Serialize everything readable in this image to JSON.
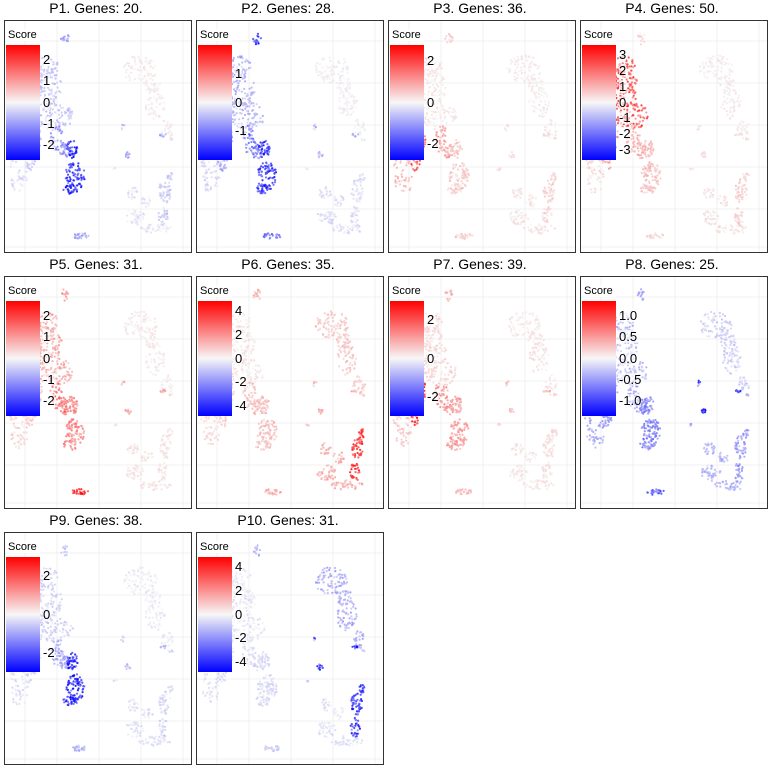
{
  "colors": {
    "high": "#ff0000",
    "mid": "#f5f5f5",
    "low": "#0000ff",
    "neutral_points": "#dcdcdc",
    "grid": "#e6e6e6",
    "border": "#333333"
  },
  "chart_data": [
    {
      "type": "scatter",
      "title": "P1. Genes: 20.",
      "legend_title": "Score",
      "ticks": [
        "2",
        "1",
        "0",
        "-1",
        "-2"
      ],
      "tick_values": [
        2,
        1,
        0,
        -1,
        -2
      ],
      "range": [
        -2.7,
        2.7
      ],
      "clusters": {
        "top_spot": -1,
        "left_strand": -0.3,
        "main_blob": -0.6,
        "right_blob": 0.1,
        "mid_spot": -1,
        "lower_left_arm": -0.6,
        "middle_lobe": -1.2,
        "right_lobe": -2.4,
        "bottom_ring": -0.2,
        "bottom_right_arm": -0.5,
        "bottom_spot": -1,
        "small_spots": -0.3
      }
    },
    {
      "type": "scatter",
      "title": "P2. Genes: 28.",
      "legend_title": "Score",
      "ticks": [
        "1",
        "0",
        "-1"
      ],
      "tick_values": [
        1,
        0,
        -1
      ],
      "range": [
        -2,
        2
      ],
      "clusters": {
        "top_spot": -1.9,
        "left_strand": -0.3,
        "main_blob": -0.6,
        "right_blob": 0,
        "mid_spot": -0.6,
        "lower_left_arm": -0.7,
        "middle_lobe": -1.1,
        "right_lobe": -1.7,
        "bottom_ring": -0.2,
        "bottom_right_arm": -0.2,
        "bottom_spot": -1.2,
        "small_spots": -0.2
      }
    },
    {
      "type": "scatter",
      "title": "P3. Genes: 36.",
      "legend_title": "Score",
      "ticks": [
        "2",
        "0",
        "-2"
      ],
      "tick_values": [
        2,
        0,
        -2
      ],
      "range": [
        -2.8,
        2.8
      ],
      "clusters": {
        "top_spot": 0.6,
        "left_strand": 0.8,
        "main_blob": 0.2,
        "right_blob": 0.1,
        "mid_spot": 0.4,
        "lower_left_arm": 2.3,
        "middle_lobe": 1.0,
        "right_lobe": 0.5,
        "bottom_ring": 0.2,
        "bottom_right_arm": 0.4,
        "bottom_spot": 0.5,
        "small_spots": 0.3
      }
    },
    {
      "type": "scatter",
      "title": "P4. Genes: 50.",
      "legend_title": "Score",
      "ticks": [
        "3",
        "2",
        "1",
        "0",
        "-1",
        "-2",
        "-3"
      ],
      "tick_values": [
        3,
        2,
        1,
        0,
        -1,
        -2,
        -3
      ],
      "range": [
        -3.6,
        3.6
      ],
      "clusters": {
        "top_spot": 0.6,
        "left_strand": 0.4,
        "main_blob": 2.8,
        "right_blob": 0.1,
        "mid_spot": 0.4,
        "lower_left_arm": 1.4,
        "middle_lobe": 1.2,
        "right_lobe": 0.9,
        "bottom_ring": 0.3,
        "bottom_right_arm": 0.6,
        "bottom_spot": 0.5,
        "small_spots": 0.4
      }
    },
    {
      "type": "scatter",
      "title": "P5. Genes: 31.",
      "legend_title": "Score",
      "ticks": [
        "2",
        "1",
        "0",
        "-1",
        "-2"
      ],
      "tick_values": [
        2,
        1,
        0,
        -1,
        -2
      ],
      "range": [
        -2.7,
        2.7
      ],
      "clusters": {
        "top_spot": 1.2,
        "left_strand": 0.4,
        "main_blob": 0.9,
        "right_blob": 0.1,
        "mid_spot": 1.0,
        "lower_left_arm": 0.6,
        "middle_lobe": 1.6,
        "right_lobe": 1.3,
        "bottom_ring": 0.2,
        "bottom_right_arm": 0.2,
        "bottom_spot": 2.6,
        "small_spots": 0.4
      }
    },
    {
      "type": "scatter",
      "title": "P6. Genes: 35.",
      "legend_title": "Score",
      "ticks": [
        "4",
        "2",
        "0",
        "-2",
        "-4"
      ],
      "tick_values": [
        4,
        2,
        0,
        -2,
        -4
      ],
      "range": [
        -4.8,
        4.8
      ],
      "clusters": {
        "top_spot": 1.5,
        "left_strand": 0.6,
        "main_blob": 0.3,
        "right_blob": 1.0,
        "mid_spot": 1.5,
        "lower_left_arm": 0.9,
        "middle_lobe": 1.2,
        "right_lobe": 1.1,
        "bottom_ring": 1.6,
        "bottom_right_arm": 4.2,
        "bottom_spot": 1.5,
        "small_spots": 1.0
      }
    },
    {
      "type": "scatter",
      "title": "P7. Genes: 39.",
      "legend_title": "Score",
      "ticks": [
        "2",
        "0",
        "-2"
      ],
      "tick_values": [
        2,
        0,
        -2
      ],
      "range": [
        -3,
        3
      ],
      "clusters": {
        "top_spot": 0.9,
        "left_strand": 0.6,
        "main_blob": 0.4,
        "right_blob": 0.2,
        "mid_spot": 0.9,
        "lower_left_arm": 2.6,
        "middle_lobe": 1.4,
        "right_lobe": 1.2,
        "bottom_ring": 0.2,
        "bottom_right_arm": 0.3,
        "bottom_spot": 0.9,
        "small_spots": 0.5
      }
    },
    {
      "type": "scatter",
      "title": "P8. Genes: 25.",
      "legend_title": "Score",
      "ticks": [
        "1.0",
        "0.5",
        "0.0",
        "-0.5",
        "-1.0"
      ],
      "tick_values": [
        1.0,
        0.5,
        0.0,
        -0.5,
        -1.0
      ],
      "range": [
        -1.35,
        1.35
      ],
      "clusters": {
        "top_spot": -0.6,
        "left_strand": -0.5,
        "main_blob": -0.35,
        "right_blob": -0.25,
        "mid_spot": -1.3,
        "lower_left_arm": -0.6,
        "middle_lobe": -0.6,
        "right_lobe": -0.7,
        "bottom_ring": -0.4,
        "bottom_right_arm": -0.6,
        "bottom_spot": -0.9,
        "small_spots": -0.4
      }
    },
    {
      "type": "scatter",
      "title": "P9. Genes: 38.",
      "legend_title": "Score",
      "ticks": [
        "2",
        "0",
        "-2"
      ],
      "tick_values": [
        2,
        0,
        -2
      ],
      "range": [
        -3,
        3
      ],
      "clusters": {
        "top_spot": -0.6,
        "left_strand": -0.3,
        "main_blob": -0.5,
        "right_blob": -0.1,
        "mid_spot": -0.9,
        "lower_left_arm": -0.5,
        "middle_lobe": -1.0,
        "right_lobe": -2.8,
        "bottom_ring": -0.3,
        "bottom_right_arm": -0.4,
        "bottom_spot": -0.9,
        "small_spots": -0.5
      }
    },
    {
      "type": "scatter",
      "title": "P10. Genes: 31.",
      "legend_title": "Score",
      "ticks": [
        "4",
        "2",
        "0",
        "-2",
        "-4"
      ],
      "tick_values": [
        4,
        2,
        0,
        -2,
        -4
      ],
      "range": [
        -4.8,
        4.8
      ],
      "clusters": {
        "top_spot": -1.5,
        "left_strand": -0.4,
        "main_blob": -0.3,
        "right_blob": -1.6,
        "mid_spot": -4.5,
        "lower_left_arm": -0.5,
        "middle_lobe": -0.6,
        "right_lobe": -0.6,
        "bottom_ring": -0.4,
        "bottom_right_arm": -4.2,
        "bottom_spot": -1.0,
        "small_spots": -0.8
      }
    }
  ]
}
